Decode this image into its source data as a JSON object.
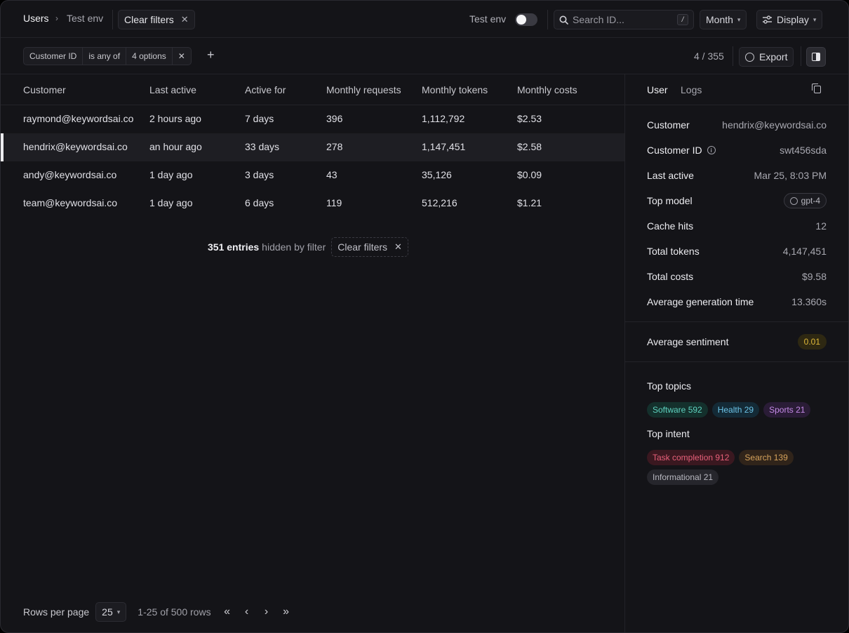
{
  "breadcrumb": {
    "root": "Users",
    "separator": "›",
    "current": "Test env"
  },
  "header": {
    "clear_filters_label": "Clear filters",
    "toggle_label": "Test env",
    "search_placeholder": "Search ID...",
    "search_shortcut": "/",
    "period_label": "Month",
    "display_label": "Display"
  },
  "filter": {
    "field": "Customer ID",
    "operator": "is any of",
    "value": "4 options",
    "remove": "✕",
    "add": "+",
    "count": "4 / 355",
    "export_label": "Export"
  },
  "table": {
    "columns": [
      "Customer",
      "Last active",
      "Active for",
      "Monthly requests",
      "Monthly tokens",
      "Monthly costs"
    ],
    "rows": [
      [
        "raymond@keywordsai.co",
        "2 hours ago",
        "7 days",
        "396",
        "1,112,792",
        "$2.53"
      ],
      [
        "hendrix@keywordsai.co",
        "an hour ago",
        "33 days",
        "278",
        "1,147,451",
        "$2.58"
      ],
      [
        "andy@keywordsai.co",
        "1 day ago",
        "3 days",
        "43",
        "35,126",
        "$0.09"
      ],
      [
        "team@keywordsai.co",
        "1 day ago",
        "6 days",
        "119",
        "512,216",
        "$1.21"
      ]
    ],
    "selected_row": 1,
    "hidden_count": "351 entries",
    "hidden_suffix": "hidden by filter",
    "clear_filters_label": "Clear filters"
  },
  "pagination": {
    "rows_per_page_label": "Rows per page",
    "rows_per_page": "25",
    "range": "1-25 of 500 rows",
    "first": "«",
    "prev": "‹",
    "next": "›",
    "last": "»"
  },
  "side": {
    "tabs": [
      "User",
      "Logs"
    ],
    "details": [
      {
        "key": "Customer",
        "value": "hendrix@keywordsai.co"
      },
      {
        "key": "Customer ID",
        "value": "swt456sda"
      },
      {
        "key": "Last active",
        "value": "Mar 25, 8:03 PM"
      },
      {
        "key": "Top model",
        "value": "gpt-4"
      },
      {
        "key": "Cache hits",
        "value": "12"
      },
      {
        "key": "Total tokens",
        "value": "4,147,451"
      },
      {
        "key": "Total costs",
        "value": "$9.58"
      },
      {
        "key": "Average generation time",
        "value": "13.360s"
      }
    ],
    "sentiment_label": "Average sentiment",
    "sentiment_value": "0.01",
    "topics_title": "Top topics",
    "topics": [
      {
        "label": "Software 592",
        "color": "#5fd3c0",
        "bg": "#14302c"
      },
      {
        "label": "Health 29",
        "color": "#6cc4e8",
        "bg": "#142a36"
      },
      {
        "label": "Sports 21",
        "color": "#c58ae8",
        "bg": "#2a1c36"
      }
    ],
    "intent_title": "Top intent",
    "intents": [
      {
        "label": "Task completion 912",
        "color": "#e8607a",
        "bg": "#3a1820"
      },
      {
        "label": "Search 139",
        "color": "#d6a35c",
        "bg": "#30241a"
      },
      {
        "label": "Informational 21",
        "color": "#b8b8c0",
        "bg": "#26262c"
      }
    ]
  }
}
